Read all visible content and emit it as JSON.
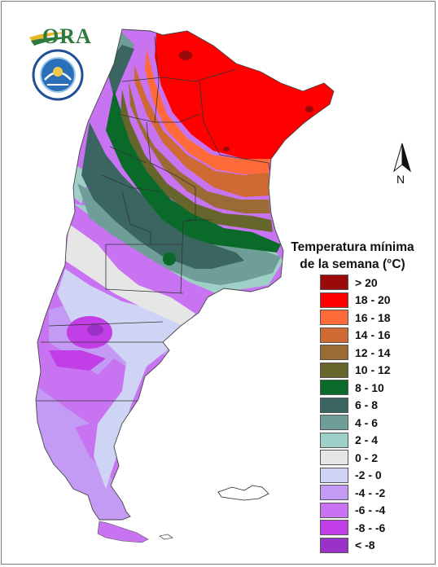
{
  "logo": {
    "brand_text": "ORA",
    "seal_text": "SERVICIO METEOROLÓGICO NACIONAL ARGENTINA"
  },
  "north_arrow": {
    "label": "N"
  },
  "legend": {
    "title_line1": "Temperatura mínima",
    "title_line2": "de la semana (°C)",
    "items": [
      {
        "label": "> 20",
        "color": "#9b0a0a"
      },
      {
        "label": "18 - 20",
        "color": "#ff0000"
      },
      {
        "label": "16 - 18",
        "color": "#ff6a3a"
      },
      {
        "label": "14 - 16",
        "color": "#cf6a34"
      },
      {
        "label": "12 - 14",
        "color": "#9b6b36"
      },
      {
        "label": "10 - 12",
        "color": "#66652c"
      },
      {
        "label": "8 - 10",
        "color": "#0a6a2a"
      },
      {
        "label": "6 - 8",
        "color": "#3a6560"
      },
      {
        "label": "4 - 6",
        "color": "#6f9d97"
      },
      {
        "label": "2 - 4",
        "color": "#9fd0c8"
      },
      {
        "label": "0 - 2",
        "color": "#e6e6e6"
      },
      {
        "label": "-2 - 0",
        "color": "#cfd4f5"
      },
      {
        "label": "-4 - -2",
        "color": "#c39bf5"
      },
      {
        "label": "-6 - -4",
        "color": "#c873f2"
      },
      {
        "label": "-8 - -6",
        "color": "#c23fe8"
      },
      {
        "label": "< -8",
        "color": "#9a32c8"
      }
    ]
  }
}
